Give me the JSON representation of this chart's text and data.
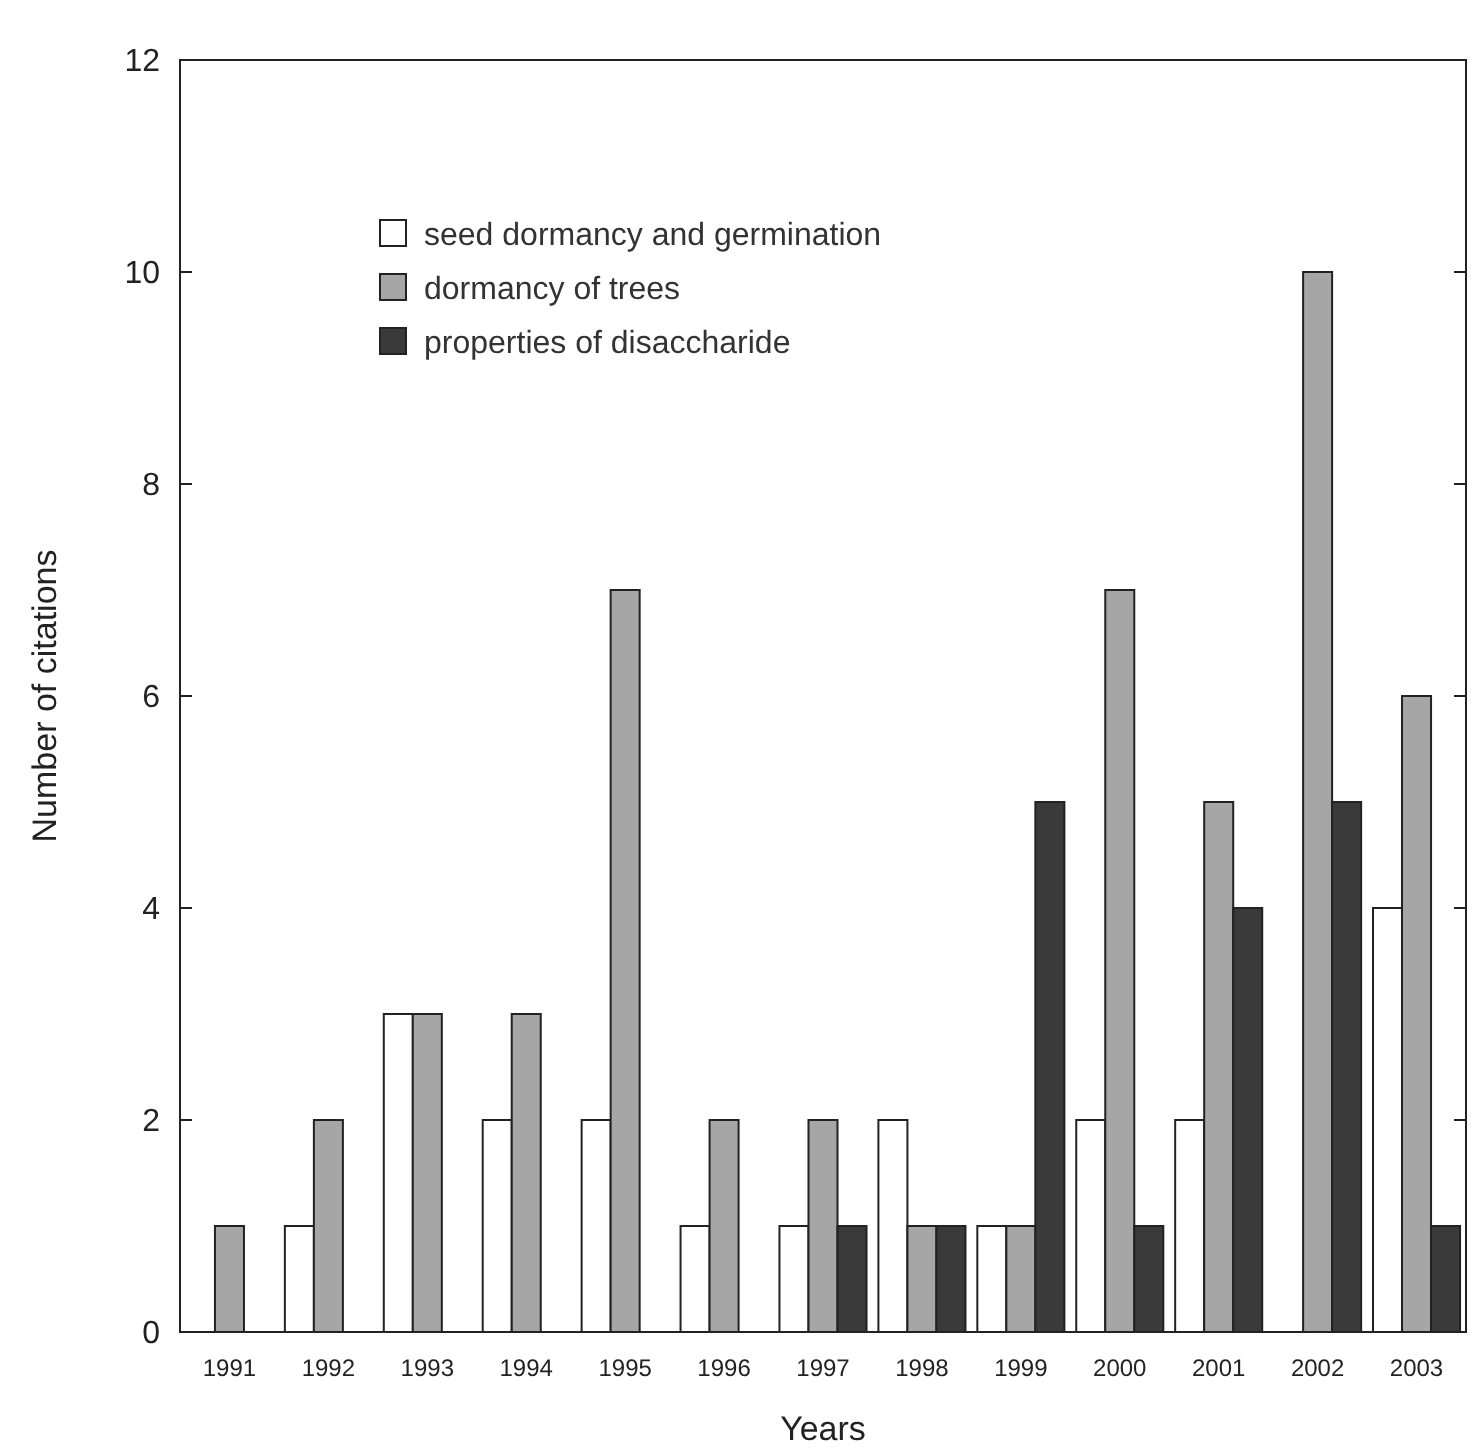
{
  "chart_data": {
    "type": "bar",
    "xlabel": "Years",
    "ylabel": "Number of citations",
    "categories": [
      "1991",
      "1992",
      "1993",
      "1994",
      "1995",
      "1996",
      "1997",
      "1998",
      "1999",
      "2000",
      "2001",
      "2002",
      "2003"
    ],
    "series": [
      {
        "name": "seed dormancy and germination",
        "color": "#ffffff",
        "values": [
          0,
          1,
          3,
          2,
          2,
          1,
          1,
          2,
          1,
          2,
          2,
          0,
          4
        ]
      },
      {
        "name": "dormancy of trees",
        "color": "#a6a6a6",
        "values": [
          1,
          2,
          3,
          3,
          7,
          2,
          2,
          1,
          1,
          7,
          5,
          10,
          6
        ]
      },
      {
        "name": "properties of disaccharide",
        "color": "#3a3a3a",
        "values": [
          0,
          0,
          0,
          0,
          0,
          0,
          1,
          1,
          5,
          1,
          4,
          5,
          1
        ]
      }
    ],
    "ylim": [
      0,
      12
    ],
    "yticks": [
      0,
      2,
      4,
      6,
      8,
      10,
      12
    ],
    "grid": false,
    "legend": "top left"
  }
}
